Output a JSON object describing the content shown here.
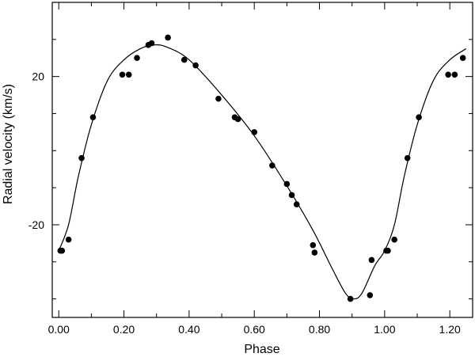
{
  "chart_data": {
    "type": "scatter",
    "title": "",
    "xlabel": "Phase",
    "ylabel": "Radial velocity (km/s)",
    "xlim": [
      -0.02,
      1.27
    ],
    "ylim": [
      -45,
      40
    ],
    "x_ticks": [
      0.0,
      0.2,
      0.4,
      0.6,
      0.8,
      1.0,
      1.2
    ],
    "x_tick_labels": [
      "0.00",
      "0.20",
      "0.40",
      "0.60",
      "0.80",
      "1.00",
      "1.20"
    ],
    "y_ticks": [
      20,
      -20
    ],
    "y_tick_labels": [
      "20",
      "-20"
    ],
    "grid": false,
    "legend": "none",
    "series": [
      {
        "kind": "points",
        "x": [
          0.005,
          0.01,
          0.03,
          0.07,
          0.105,
          0.195,
          0.215,
          0.24,
          0.275,
          0.285,
          0.335,
          0.385,
          0.42,
          0.49,
          0.54,
          0.55,
          0.6,
          0.655,
          0.7,
          0.715,
          0.73,
          0.78,
          0.785,
          0.895,
          0.955,
          0.96,
          1.005,
          1.01,
          1.03,
          1.07,
          1.105,
          1.195,
          1.215,
          1.24
        ],
        "y": [
          -27,
          -27,
          -24,
          -2,
          9,
          20.5,
          20.5,
          25,
          28.5,
          29,
          30.5,
          24.5,
          23,
          14,
          9,
          8.5,
          5,
          -4,
          -9,
          -12,
          -14.5,
          -25.5,
          -27.5,
          -40,
          -39,
          -29.5,
          -27,
          -27,
          -24,
          -2,
          9,
          20.5,
          20.5,
          25
        ]
      },
      {
        "kind": "curve",
        "x": [
          0.0,
          0.03,
          0.06,
          0.1,
          0.15,
          0.2,
          0.25,
          0.29,
          0.33,
          0.4,
          0.5,
          0.6,
          0.7,
          0.78,
          0.84,
          0.88,
          0.905,
          0.93,
          0.97,
          1.0,
          1.03,
          1.06,
          1.1,
          1.15,
          1.2,
          1.25
        ],
        "y": [
          -27,
          -20,
          -7,
          7,
          19,
          24.5,
          27.5,
          28.5,
          28,
          24.5,
          15,
          4,
          -9.5,
          -21.5,
          -32,
          -38.5,
          -40,
          -38.5,
          -31,
          -27,
          -20,
          -7,
          7,
          19,
          24.5,
          27.5
        ]
      }
    ]
  }
}
